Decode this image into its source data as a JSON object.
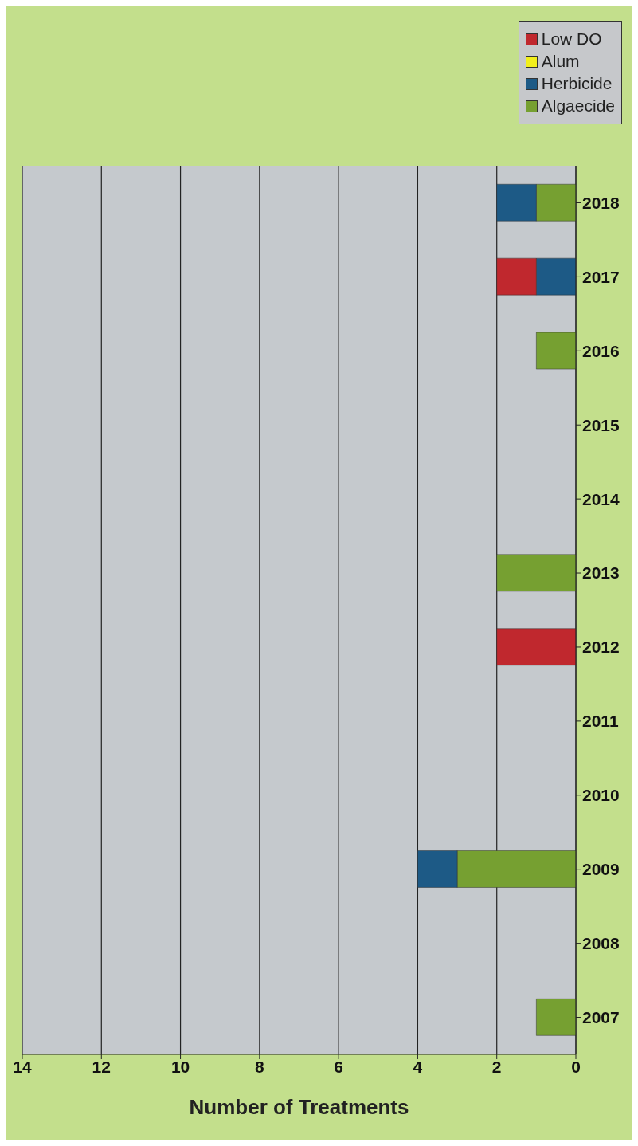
{
  "chart_data": {
    "type": "bar",
    "stacked": true,
    "orientation": "horizontal",
    "xlabel": "Number of Treatments",
    "categories": [
      "2018",
      "2017",
      "2016",
      "2015",
      "2014",
      "2013",
      "2012",
      "2011",
      "2010",
      "2009",
      "2008",
      "2007"
    ],
    "series": [
      {
        "name": "Algaecide",
        "color": "#76a031",
        "values": [
          1,
          0,
          1,
          0,
          0,
          2,
          0,
          0,
          0,
          3,
          0,
          1
        ]
      },
      {
        "name": "Herbicide",
        "color": "#1d5a86",
        "values": [
          1,
          1,
          0,
          0,
          0,
          0,
          0,
          0,
          0,
          1,
          0,
          0
        ]
      },
      {
        "name": "Alum",
        "color": "#f2ef1c",
        "values": [
          0,
          0,
          0,
          0,
          0,
          0,
          0,
          0,
          0,
          0,
          0,
          0
        ]
      },
      {
        "name": "Low DO",
        "color": "#c0282e",
        "values": [
          0,
          1,
          0,
          0,
          0,
          0,
          2,
          0,
          0,
          0,
          0,
          0
        ]
      }
    ],
    "xlim": [
      14,
      0
    ],
    "xticks": [
      14,
      12,
      10,
      8,
      6,
      4,
      2,
      0
    ],
    "grid": "x",
    "legend": "top right"
  }
}
